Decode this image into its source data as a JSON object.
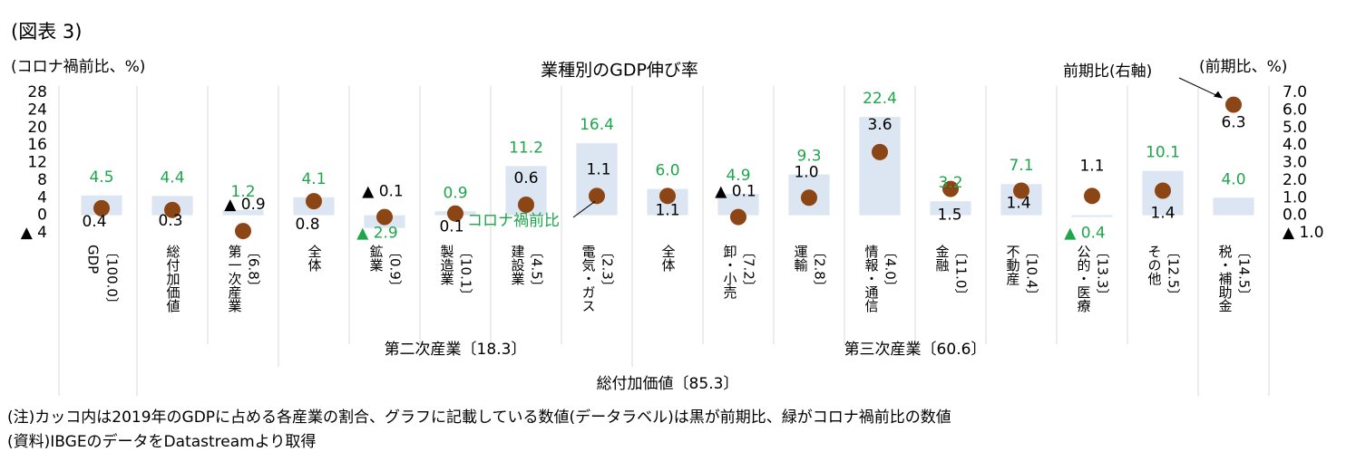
{
  "chart_data": {
    "type": "bar",
    "figure_label": "(図表 3)",
    "title": "業種別のGDP伸び率",
    "y_label": "(コロナ禍前比、%)",
    "y2_label": "(前期比、%)",
    "categories": [
      [
        "GDP",
        "〔100.0〕"
      ],
      [
        "総付加価値"
      ],
      [
        "第一次産業",
        "〔6.8〕"
      ],
      [
        "全体"
      ],
      [
        "鉱業",
        "〔0.9〕"
      ],
      [
        "製造業",
        "〔10.1〕"
      ],
      [
        "建設業",
        "〔4.5〕"
      ],
      [
        "電気・ガス",
        "〔2.3〕"
      ],
      [
        "全体"
      ],
      [
        "卸・小売",
        "〔7.2〕"
      ],
      [
        "運輸",
        "〔2.8〕"
      ],
      [
        "情報・通信",
        "〔4.0〕"
      ],
      [
        "金融",
        "〔11.0〕"
      ],
      [
        "不動産",
        "〔10.4〕"
      ],
      [
        "公的・医療",
        "〔13.3〕"
      ],
      [
        "その他",
        "〔12.5〕"
      ],
      [
        "税・補助金",
        "〔14.5〕"
      ]
    ],
    "groups": [
      "第二次産業〔18.3〕",
      "第三次産業〔60.6〕",
      "総付加価値〔85.3〕"
    ],
    "series": [
      {
        "name": "コロナ禍前比",
        "type": "bar",
        "color": "#dce6f2",
        "label_color": "#1ea64a",
        "values": [
          4.5,
          4.4,
          1.2,
          4.1,
          -2.9,
          0.9,
          11.2,
          16.4,
          6.0,
          4.9,
          9.3,
          22.4,
          3.2,
          7.1,
          -0.4,
          10.1,
          4.0
        ],
        "value_labels": [
          "4.5",
          "4.4",
          "1.2",
          "4.1",
          "▲ 2.9",
          "0.9",
          "11.2",
          "16.4",
          "6.0",
          "4.9",
          "9.3",
          "22.4",
          "3.2",
          "7.1",
          "▲ 0.4",
          "10.1",
          "4.0"
        ]
      },
      {
        "name": "前期比(右軸)",
        "type": "scatter",
        "axis": "y2",
        "color": "#8c4514",
        "label_color": "#000000",
        "values": [
          0.4,
          0.3,
          -0.9,
          0.8,
          -0.1,
          0.1,
          0.6,
          1.1,
          1.1,
          -0.1,
          1.0,
          3.6,
          1.5,
          1.4,
          1.1,
          1.4,
          6.3
        ],
        "value_labels": [
          "0.4",
          "0.3",
          "▲ 0.9",
          "0.8",
          "▲ 0.1",
          "0.1",
          "0.6",
          "1.1",
          "1.1",
          "▲ 0.1",
          "1.0",
          "3.6",
          "1.5",
          "1.4",
          "1.1",
          "1.4",
          "6.3"
        ]
      }
    ],
    "ylim": [
      -4,
      28
    ],
    "yticks": [
      {
        "value": -4,
        "label": "▲ 4"
      },
      0,
      4,
      8,
      12,
      16,
      20,
      24,
      28
    ],
    "y2lim": [
      -1,
      7
    ],
    "y2ticks": [
      {
        "value": -1,
        "label": "▲ 1.0"
      },
      {
        "value": 0,
        "label": "0.0"
      },
      {
        "value": 1,
        "label": "1.0"
      },
      {
        "value": 2,
        "label": "2.0"
      },
      {
        "value": 3,
        "label": "3.0"
      },
      {
        "value": 4,
        "label": "4.0"
      },
      {
        "value": 5,
        "label": "5.0"
      },
      {
        "value": 6,
        "label": "6.0"
      },
      {
        "value": 7,
        "label": "7.0"
      }
    ],
    "grid": false,
    "notes": [
      "(注)カッコ内は2019年のGDPに占める各産業の割合、グラフに記載している数値(データラベル)は黒が前期比、緑がコロナ禍前比の数値",
      "(資料)IBGEのデータをDatastreamより取得"
    ]
  }
}
